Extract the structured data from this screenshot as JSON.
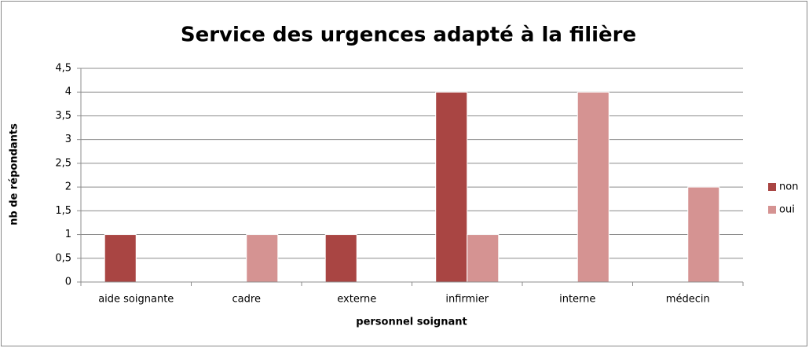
{
  "chart_data": {
    "type": "bar",
    "title": "Service des urgences adapté à la filière",
    "x_label": "personnel soignant",
    "y_label": "nb de répondants",
    "categories": [
      "aide soignante",
      "cadre",
      "externe",
      "infirmier",
      "interne",
      "médecin"
    ],
    "series": [
      {
        "name": "non",
        "color": "#a94543",
        "values": [
          1,
          0,
          1,
          4,
          0,
          0
        ]
      },
      {
        "name": "oui",
        "color": "#d59392",
        "values": [
          0,
          1,
          0,
          1,
          4,
          2
        ]
      }
    ],
    "ylim": [
      0,
      4.5
    ],
    "yticks": [
      0,
      {
        "value": 0.5,
        "label": "0,5"
      },
      1,
      {
        "value": 1.5,
        "label": "1,5"
      },
      2,
      {
        "value": 2.5,
        "label": "2,5"
      },
      3,
      {
        "value": 3.5,
        "label": "3,5"
      },
      4,
      {
        "value": 4.5,
        "label": "4,5"
      }
    ],
    "grid": true,
    "legend": "right"
  }
}
